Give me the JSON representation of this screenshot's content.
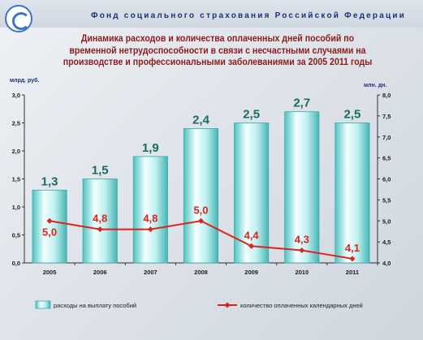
{
  "header": {
    "organization": "Фонд социального страхования Российской Федерации"
  },
  "chart_data": {
    "type": "bar",
    "title": "Динамика расходов и количества оплаченных дней пособий по временной нетрудоспособности в связи с несчастными случаями на производстве и профессиональными заболеваниями за 2005 2011 годы",
    "categories": [
      "2005",
      "2006",
      "2007",
      "2008",
      "2009",
      "2010",
      "2011"
    ],
    "left_axis": {
      "label": "млрд. руб.",
      "ylim": [
        0,
        3
      ],
      "ticks": [
        "0,0",
        "0,5",
        "1,0",
        "1,5",
        "2,0",
        "2,5",
        "3,0"
      ]
    },
    "right_axis": {
      "label": "млн. дн.",
      "ylim": [
        4,
        8
      ],
      "ticks": [
        "4,0",
        "4,5",
        "5,0",
        "5,5",
        "6,0",
        "6,5",
        "7,0",
        "7,5",
        "8,0"
      ]
    },
    "series": [
      {
        "name": "расходы на выплату пособий",
        "type": "bar",
        "axis": "left",
        "values": [
          1.3,
          1.5,
          1.9,
          2.4,
          2.5,
          2.7,
          2.5
        ],
        "labels": [
          "1,3",
          "1,5",
          "1,9",
          "2,4",
          "2,5",
          "2,7",
          "2,5"
        ],
        "color": "#7fd6d6"
      },
      {
        "name": "количество оплаченных календарных дней",
        "type": "line",
        "axis": "right",
        "values": [
          5.0,
          4.8,
          4.8,
          5.0,
          4.4,
          4.3,
          4.1
        ],
        "labels": [
          "5,0",
          "4,8",
          "4,8",
          "5,0",
          "4,4",
          "4,3",
          "4,1"
        ],
        "color": "#e0231c"
      }
    ],
    "grid": false,
    "legend_position": "bottom"
  }
}
